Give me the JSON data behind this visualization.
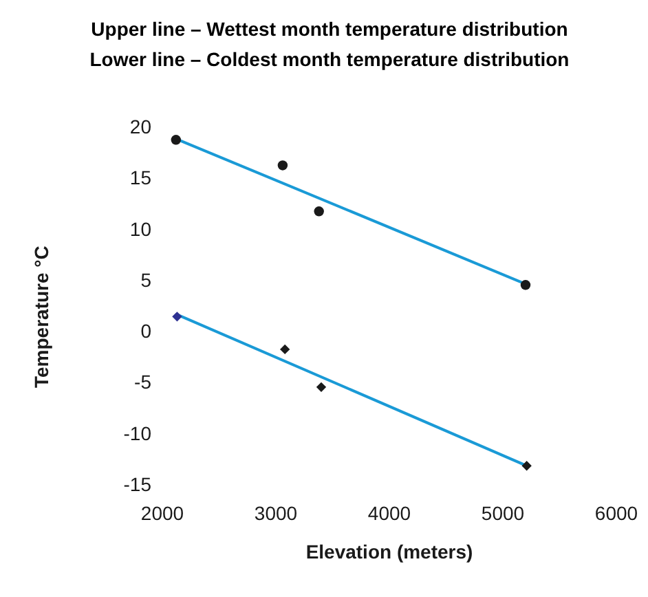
{
  "chart_data": {
    "type": "scatter",
    "title": "Upper line – Wettest month temperature distribution",
    "subtitle": "Lower line – Coldest month temperature distribution",
    "xlabel": "Elevation (meters)",
    "ylabel": "Temperature °C",
    "xlim": [
      2000,
      6000
    ],
    "xticks": [
      2000,
      3000,
      4000,
      5000,
      6000
    ],
    "ylim": [
      -15,
      20
    ],
    "yticks": [
      -15,
      -10,
      -5,
      0,
      5,
      10,
      15,
      20
    ],
    "grid": false,
    "legend": false,
    "series": [
      {
        "type": "scatter",
        "marker": "circle",
        "color": "#1a1a1a",
        "x": [
          2120,
          3060,
          3380,
          5200
        ],
        "values": [
          18.7,
          16.2,
          11.7,
          4.5
        ]
      },
      {
        "type": "scatter",
        "marker": "diamond",
        "color": "#1a1a1a",
        "colors": [
          "#2e3192",
          "#1a1a1a",
          "#1a1a1a",
          "#1a1a1a"
        ],
        "x": [
          2130,
          3080,
          3400,
          5210
        ],
        "values": [
          1.4,
          -1.8,
          -5.5,
          -13.2
        ]
      },
      {
        "type": "line",
        "color": "#1a9ad6",
        "line_style": "solid",
        "marker": "none",
        "x": [
          2120,
          5200
        ],
        "values": [
          18.8,
          4.6
        ]
      },
      {
        "type": "line",
        "color": "#1a9ad6",
        "line_style": "solid",
        "marker": "none",
        "x": [
          2130,
          5210
        ],
        "values": [
          1.6,
          -13.2
        ]
      }
    ]
  }
}
